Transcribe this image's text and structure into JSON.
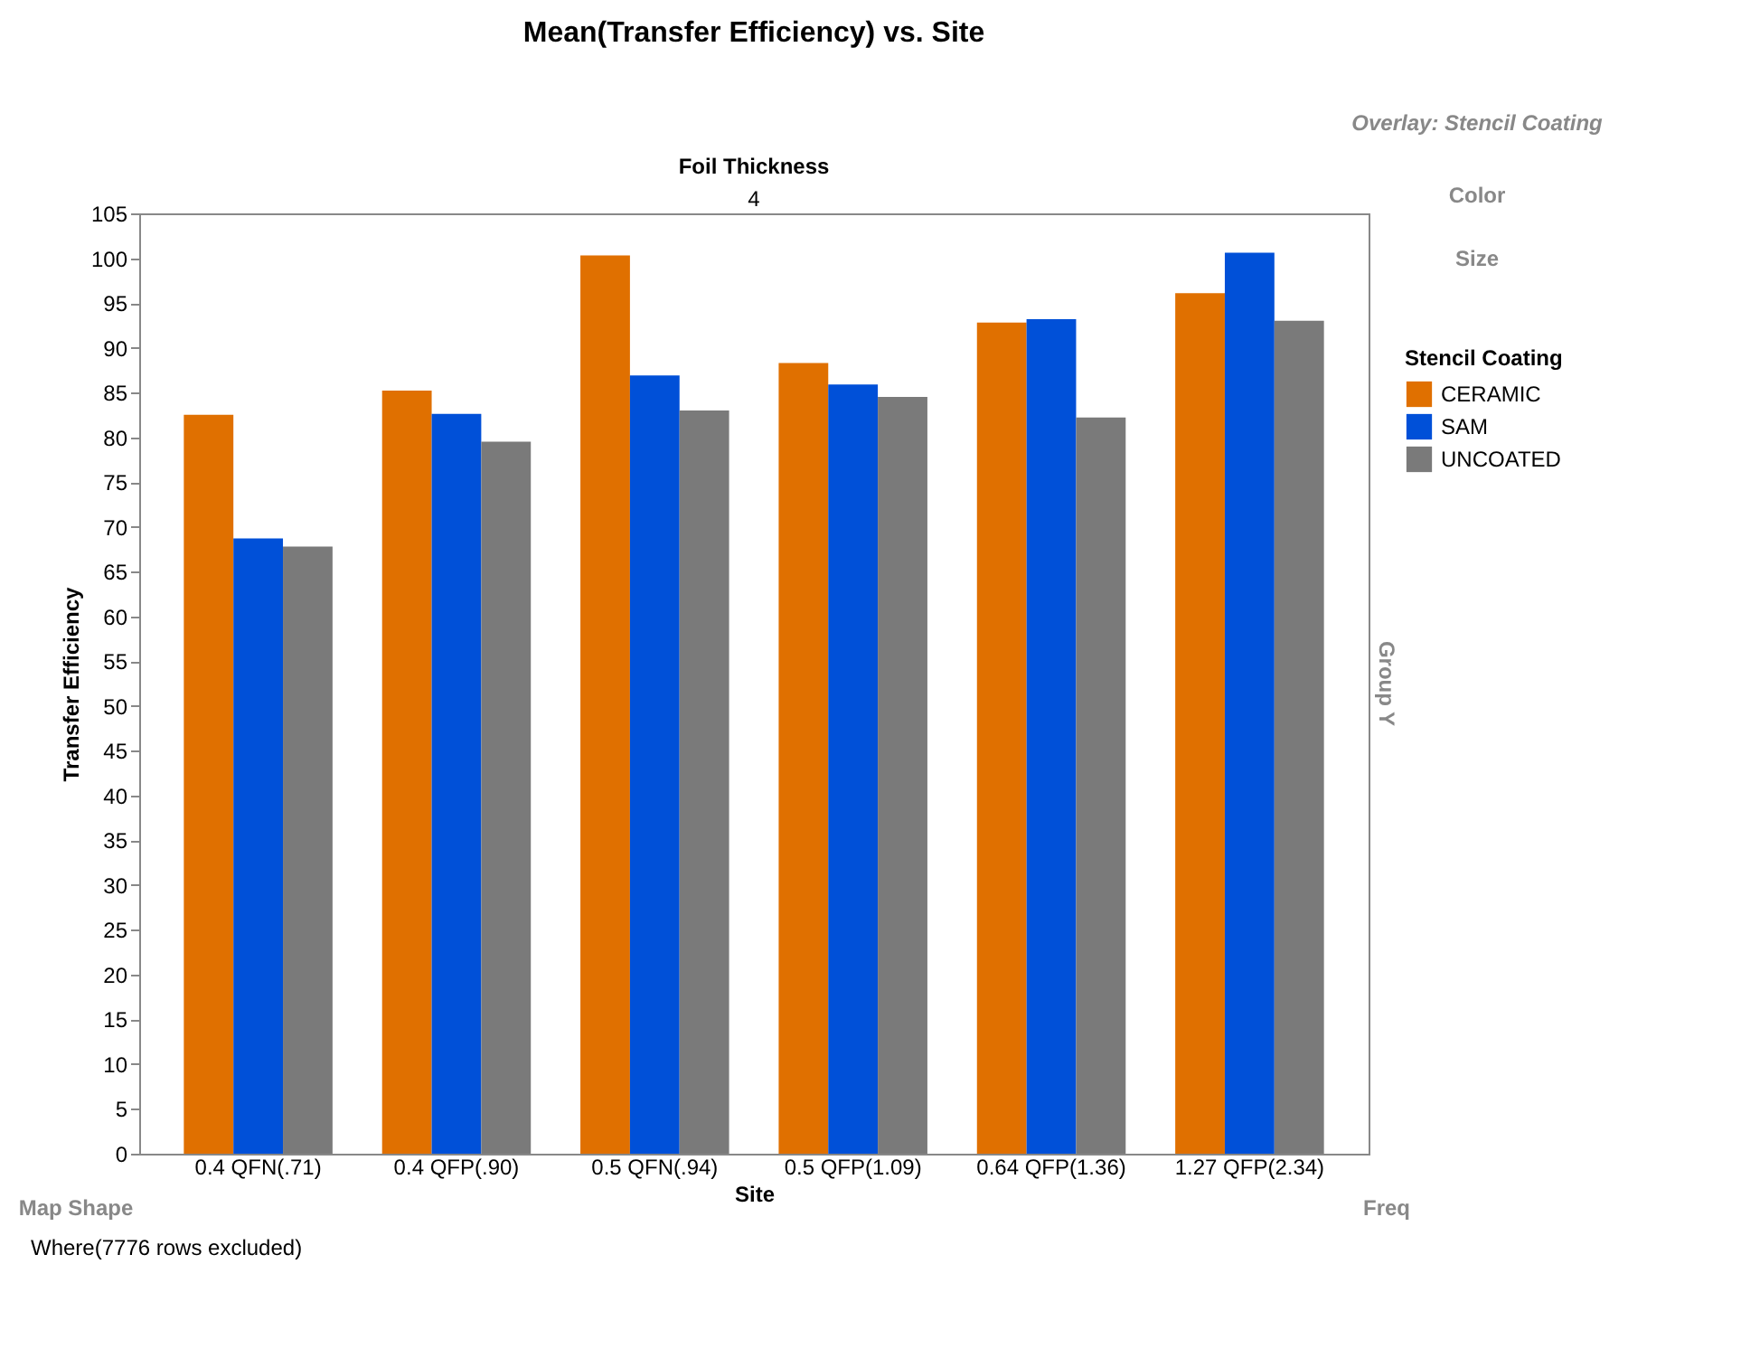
{
  "chart_data": {
    "type": "bar",
    "title": "Mean(Transfer Efficiency) vs. Site",
    "xlabel": "Site",
    "ylabel": "Transfer Efficiency",
    "legend_title": "Stencil Coating",
    "categories": [
      "0.4 QFN(.71)",
      "0.4 QFP(.90)",
      "0.5 QFN(.94)",
      "0.5 QFP(1.09)",
      "0.64 QFP(1.36)",
      "1.27 QFP(2.34)"
    ],
    "series": [
      {
        "name": "CERAMIC",
        "color": "#e07000",
        "values": [
          82.5,
          85.2,
          100.3,
          88.3,
          92.8,
          96.1
        ]
      },
      {
        "name": "SAM",
        "color": "#0050d8",
        "values": [
          68.7,
          82.6,
          86.9,
          85.9,
          93.2,
          100.6
        ]
      },
      {
        "name": "UNCOATED",
        "color": "#7a7a7a",
        "values": [
          67.8,
          79.5,
          83.0,
          84.5,
          82.2,
          93.0
        ]
      }
    ],
    "ylim": [
      0,
      105
    ],
    "yticks": [
      0,
      5,
      10,
      15,
      20,
      25,
      30,
      35,
      40,
      45,
      50,
      55,
      60,
      65,
      70,
      75,
      80,
      85,
      90,
      95,
      100,
      105
    ],
    "grid": false,
    "legend": "right",
    "annotations": [
      "Foil Thickness",
      "4",
      "Overlay: Stencil Coating",
      "Color",
      "Size",
      "Group Y",
      "Map Shape",
      "Freq",
      "Where(7776 rows excluded)"
    ]
  }
}
